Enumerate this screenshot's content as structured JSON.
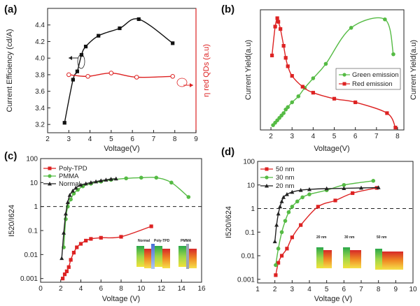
{
  "panels": {
    "a": {
      "tag": "(a)",
      "xlabel": "Voltage(V)",
      "ylabel": "Current Efficiency (cd/A)",
      "ylabel_right": "η red QDs (a.u)"
    },
    "b": {
      "tag": "(b)",
      "xlabel": "Voltage(V)",
      "ylabel": "Current Yield(a.u)",
      "ylabel_right": "Current Yield(a.u)"
    },
    "c": {
      "tag": "(c)",
      "xlabel": "Voltage (V)",
      "ylabel": "I520/I624",
      "inset": {
        "labels": [
          "Normal",
          "Poly-TPD",
          "PMMA"
        ]
      }
    },
    "d": {
      "tag": "(d)",
      "xlabel": "Voltage (V)",
      "ylabel": "I520/I624",
      "inset": {
        "labels": [
          "20 nm",
          "30 nm",
          "50 nm"
        ]
      }
    }
  },
  "chart_data": [
    {
      "type": "line",
      "panel": "a",
      "xlabel": "Voltage(V)",
      "ylabel": "Current Efficiency (cd/A)",
      "ylabel_right": "η red QDs (a.u)",
      "xlim": [
        2,
        9
      ],
      "ylim": [
        3.1,
        4.6
      ],
      "xticks": [
        2,
        3,
        4,
        5,
        6,
        7,
        8,
        9
      ],
      "yticks": [
        3.2,
        3.4,
        3.6,
        3.8,
        4.0,
        4.2,
        4.4
      ],
      "series": [
        {
          "axis": "left",
          "color": "#111111",
          "marker": "square",
          "x": [
            2.8,
            3.2,
            3.4,
            3.6,
            3.8,
            4.4,
            5.4,
            6.3,
            7.9
          ],
          "y": [
            3.22,
            3.74,
            3.84,
            4.04,
            4.14,
            4.27,
            4.36,
            4.47,
            4.18
          ]
        },
        {
          "axis": "right",
          "color": "#dd2222",
          "marker": "circle-open",
          "x": [
            3.0,
            3.9,
            5.0,
            6.2,
            7.9
          ],
          "y": [
            3.8,
            3.78,
            3.82,
            3.77,
            3.78
          ]
        }
      ]
    },
    {
      "type": "line",
      "panel": "b",
      "xlabel": "Voltage(V)",
      "ylabel": "Current Yield(a.u)",
      "ylabel_right": "Current Yield(a.u)",
      "xlim": [
        1.5,
        8.3
      ],
      "ylim": [
        0,
        1
      ],
      "xticks": [
        2,
        3,
        4,
        5,
        6,
        7,
        8
      ],
      "legend": "center-right",
      "series": [
        {
          "name": "Green emission",
          "color": "#55bb44",
          "marker": "circle",
          "x": [
            2.1,
            2.2,
            2.3,
            2.4,
            2.5,
            2.6,
            2.7,
            2.8,
            3.0,
            3.3,
            3.6,
            4.0,
            4.6,
            5.8,
            7.4,
            7.8
          ],
          "y": [
            0.04,
            0.06,
            0.08,
            0.1,
            0.12,
            0.14,
            0.17,
            0.19,
            0.23,
            0.28,
            0.35,
            0.43,
            0.55,
            0.85,
            0.92,
            0.63
          ]
        },
        {
          "name": "Red emission",
          "color": "#dd2222",
          "marker": "square",
          "x": [
            2.05,
            2.2,
            2.3,
            2.35,
            2.45,
            2.6,
            2.7,
            2.8,
            3.0,
            3.5,
            4.0,
            5.0,
            6.0,
            7.5,
            7.9
          ],
          "y": [
            0.62,
            0.86,
            0.93,
            0.9,
            0.84,
            0.7,
            0.6,
            0.53,
            0.45,
            0.36,
            0.31,
            0.26,
            0.23,
            0.14,
            0.02
          ]
        }
      ]
    },
    {
      "type": "line",
      "panel": "c",
      "xlabel": "Voltage (V)",
      "ylabel": "I520/I624",
      "yscale": "log",
      "xlim": [
        0,
        16
      ],
      "ylim": [
        0.0007,
        100
      ],
      "xticks": [
        0,
        2,
        4,
        6,
        8,
        10,
        12,
        14,
        16
      ],
      "yticks": [
        0.001,
        0.01,
        0.1,
        1,
        10,
        100
      ],
      "ytick_labels": [
        "0.001",
        "0.01",
        "0.1",
        "1",
        "10",
        "100"
      ],
      "reference_line": 1,
      "legend": "top-left",
      "series": [
        {
          "name": "Poly-TPD",
          "color": "#dd2222",
          "marker": "square",
          "x": [
            2.2,
            2.4,
            2.6,
            2.8,
            3.0,
            3.3,
            3.6,
            4.0,
            4.5,
            5.0,
            6.0,
            8.0,
            11.0
          ],
          "y": [
            0.001,
            0.0015,
            0.002,
            0.003,
            0.006,
            0.012,
            0.02,
            0.028,
            0.038,
            0.045,
            0.05,
            0.055,
            0.15
          ]
        },
        {
          "name": "PMMA",
          "color": "#55bb44",
          "marker": "circle",
          "x": [
            2.3,
            2.5,
            2.7,
            3.0,
            3.3,
            3.7,
            4.2,
            5.0,
            6.0,
            7.0,
            8.5,
            10.0,
            11.5,
            13.0,
            14.7
          ],
          "y": [
            0.02,
            0.3,
            1.0,
            2.0,
            3.5,
            5.0,
            7.0,
            9.0,
            11.0,
            13.0,
            15.0,
            16.0,
            16.0,
            10.0,
            2.5
          ]
        },
        {
          "name": "Normal",
          "color": "#222222",
          "marker": "triangle",
          "x": [
            2.1,
            2.3,
            2.5,
            2.7,
            2.9,
            3.2,
            3.5,
            4.0,
            4.5,
            5.0,
            5.5,
            6.0,
            6.5,
            7.0,
            7.5
          ],
          "y": [
            0.007,
            0.08,
            0.5,
            1.5,
            3.0,
            4.5,
            6.0,
            8.0,
            9.0,
            10.0,
            11.0,
            12.0,
            13.0,
            14.0,
            14.5
          ]
        }
      ]
    },
    {
      "type": "line",
      "panel": "d",
      "xlabel": "Voltage (V)",
      "ylabel": "I520/I624",
      "yscale": "log",
      "xlim": [
        1,
        10
      ],
      "ylim": [
        0.0007,
        100
      ],
      "xticks": [
        1,
        2,
        3,
        4,
        5,
        6,
        7,
        8,
        9,
        10
      ],
      "yticks": [
        0.001,
        0.01,
        0.1,
        1,
        10,
        100
      ],
      "ytick_labels": [
        "0.001",
        "0.01",
        "0.1",
        "1",
        "10",
        "100"
      ],
      "reference_line": 1,
      "legend": "top-left",
      "series": [
        {
          "name": "50 nm",
          "color": "#dd2222",
          "marker": "square",
          "x": [
            2.05,
            2.2,
            2.4,
            2.7,
            3.0,
            3.5,
            4.5,
            5.5,
            6.5,
            7.9
          ],
          "y": [
            0.0015,
            0.005,
            0.01,
            0.02,
            0.06,
            0.2,
            1.2,
            2.2,
            4.5,
            7.5
          ]
        },
        {
          "name": "30 nm",
          "color": "#55bb44",
          "marker": "circle",
          "x": [
            2.05,
            2.2,
            2.4,
            2.6,
            2.8,
            3.0,
            3.3,
            3.6,
            4.0,
            5.0,
            6.0,
            7.7
          ],
          "y": [
            0.004,
            0.02,
            0.1,
            0.3,
            0.7,
            1.2,
            2.0,
            3.0,
            4.0,
            6.0,
            10.0,
            15.0
          ]
        },
        {
          "name": "20 nm",
          "color": "#222222",
          "marker": "triangle",
          "x": [
            2.0,
            2.1,
            2.2,
            2.3,
            2.4,
            2.5,
            2.7,
            3.0,
            3.5,
            4.0,
            5.0,
            6.0,
            7.0,
            8.0
          ],
          "y": [
            0.04,
            0.2,
            0.6,
            1.2,
            2.0,
            3.0,
            4.0,
            5.0,
            6.0,
            6.5,
            7.0,
            7.2,
            7.5,
            7.8
          ]
        }
      ]
    }
  ]
}
